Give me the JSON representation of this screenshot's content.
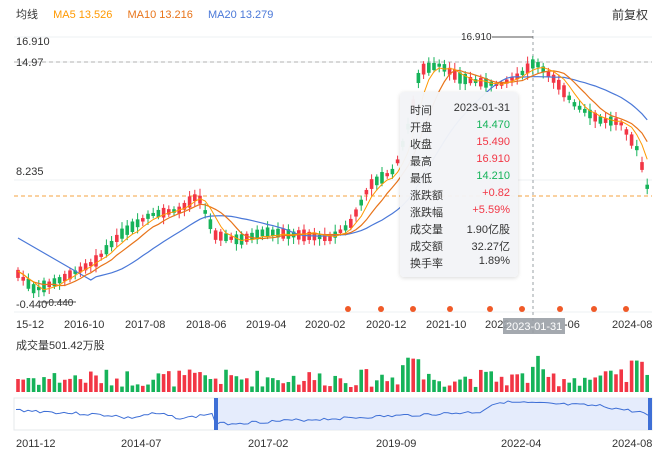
{
  "header": {
    "indicator_label": "均线",
    "ma5": "MA5 13.526",
    "ma10": "MA10 13.216",
    "ma20": "MA20 13.279",
    "adjust_label": "前复权"
  },
  "colors": {
    "up": "#f23645",
    "down": "#16b35a",
    "ma5": "#ff9900",
    "ma10": "#e8741a",
    "ma20": "#4a78d8"
  },
  "price_chart": {
    "y_labels": [
      "16.910",
      "14.97",
      "8.235",
      "-0.440"
    ],
    "x_labels": [
      "15-12",
      "2016-10",
      "2017-08",
      "2018-06",
      "2019-04",
      "2020-02",
      "2020-12",
      "2021-10",
      "2022",
      "-06",
      "2024-08"
    ],
    "max_marker": "16.910",
    "min_marker": "-0.440",
    "crosshair_date": "2023-01-31"
  },
  "tooltip": {
    "rows": [
      {
        "label": "时间",
        "value": "2023-01-31"
      },
      {
        "label": "开盘",
        "value": "14.470"
      },
      {
        "label": "收盘",
        "value": "15.490"
      },
      {
        "label": "最高",
        "value": "16.910"
      },
      {
        "label": "最低",
        "value": "14.210"
      },
      {
        "label": "涨跌额",
        "value": "+0.82"
      },
      {
        "label": "涨跌幅",
        "value": "+5.59%"
      },
      {
        "label": "成交量",
        "value": "1.90亿股"
      },
      {
        "label": "成交额",
        "value": "32.27亿"
      },
      {
        "label": "换手率",
        "value": "1.89%"
      }
    ]
  },
  "volume": {
    "label": "成交量501.42万股"
  },
  "navigator": {
    "x_labels": [
      "2011-12",
      "2014-07",
      "2017-02",
      "2019-09",
      "2022-04",
      "2024-08"
    ]
  }
}
